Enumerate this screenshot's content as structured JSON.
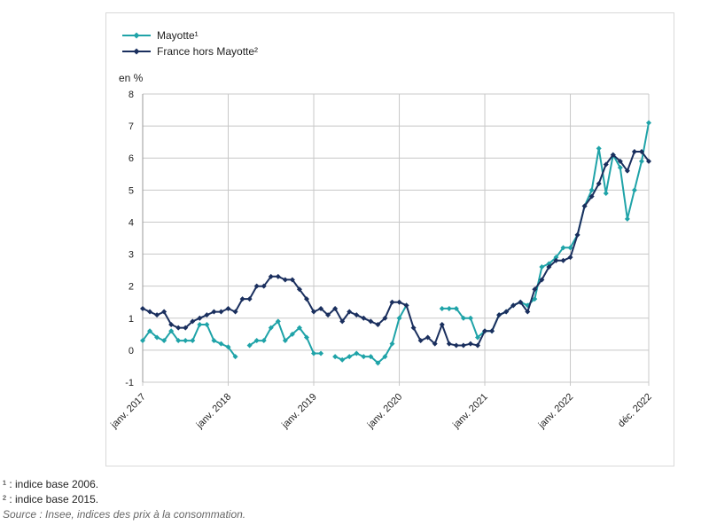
{
  "chart_data": {
    "type": "line",
    "ylabel": "en %",
    "ylim": [
      -1,
      8
    ],
    "yticks": [
      8,
      7,
      6,
      5,
      4,
      3,
      2,
      1,
      0,
      -1
    ],
    "grid": true,
    "legend_position": "top-left",
    "x_tick_labels": [
      "janv. 2017",
      "janv. 2018",
      "janv. 2019",
      "janv. 2020",
      "janv. 2021",
      "janv. 2022",
      "déc. 2022"
    ],
    "x_tick_month_index": [
      0,
      12,
      24,
      36,
      48,
      60,
      71
    ],
    "series": [
      {
        "name": "Mayotte¹",
        "color": "#1fa3a8",
        "values": [
          0.3,
          0.6,
          0.4,
          0.3,
          0.6,
          0.3,
          0.3,
          0.3,
          0.8,
          0.8,
          0.3,
          0.2,
          0.1,
          -0.2,
          null,
          0.15,
          0.3,
          0.3,
          0.7,
          0.9,
          0.3,
          0.5,
          0.7,
          0.4,
          -0.1,
          -0.1,
          null,
          -0.2,
          -0.3,
          -0.2,
          -0.1,
          -0.2,
          -0.2,
          -0.4,
          -0.2,
          0.2,
          1.0,
          1.4,
          null,
          null,
          null,
          null,
          1.3,
          1.3,
          1.3,
          1.0,
          1.0,
          0.4,
          0.6,
          0.6,
          1.1,
          1.2,
          1.4,
          1.5,
          1.4,
          1.6,
          2.6,
          2.7,
          2.9,
          3.2,
          3.2,
          3.6,
          4.5,
          5.0,
          6.3,
          4.9,
          6.1,
          5.7,
          4.1,
          5.0,
          5.9,
          7.1
        ]
      },
      {
        "name": "France hors Mayotte²",
        "color": "#1a2f5e",
        "values": [
          1.3,
          1.2,
          1.1,
          1.2,
          0.8,
          0.7,
          0.7,
          0.9,
          1.0,
          1.1,
          1.2,
          1.2,
          1.3,
          1.2,
          1.6,
          1.6,
          2.0,
          2.0,
          2.3,
          2.3,
          2.2,
          2.2,
          1.9,
          1.6,
          1.2,
          1.3,
          1.1,
          1.3,
          0.9,
          1.2,
          1.1,
          1.0,
          0.9,
          0.8,
          1.0,
          1.5,
          1.5,
          1.4,
          0.7,
          0.3,
          0.4,
          0.2,
          0.8,
          0.2,
          0.15,
          0.15,
          0.2,
          0.15,
          0.6,
          0.6,
          1.1,
          1.2,
          1.4,
          1.5,
          1.2,
          1.9,
          2.2,
          2.6,
          2.8,
          2.8,
          2.9,
          3.6,
          4.5,
          4.8,
          5.2,
          5.8,
          6.1,
          5.9,
          5.6,
          6.2,
          6.2,
          5.9
        ]
      }
    ]
  },
  "notes": {
    "note1": "¹ : indice base 2006.",
    "note2": "² : indice base 2015.",
    "source": "Source : Insee, indices des prix à la consommation."
  }
}
